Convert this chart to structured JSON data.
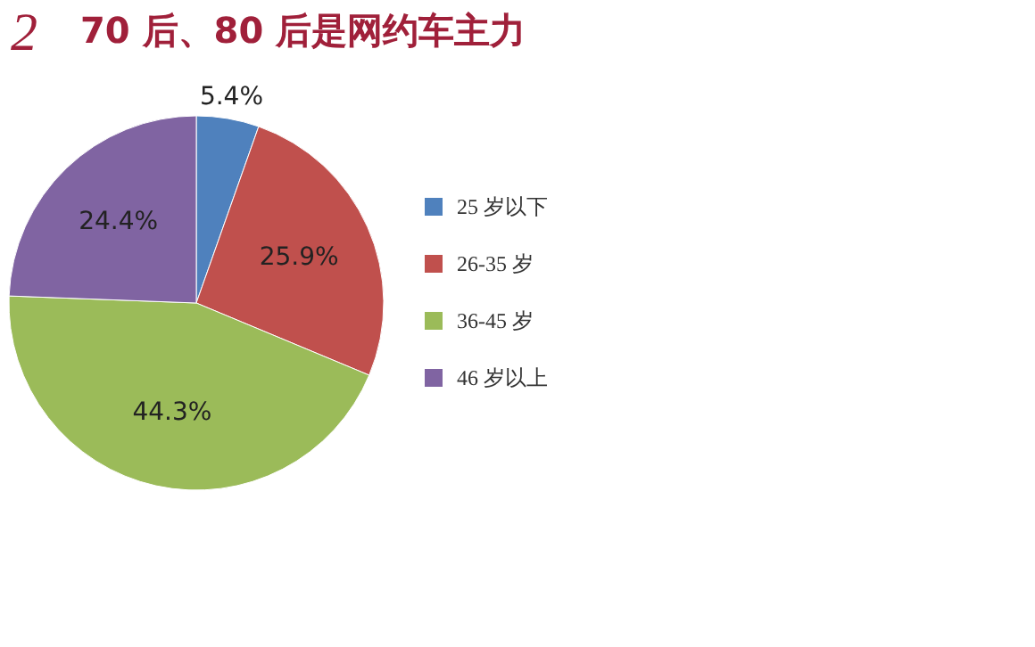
{
  "chart_data": {
    "type": "pie",
    "title": "70 后、80 后是网约车主力",
    "annotations": [
      "2"
    ],
    "categories": [
      "25 岁以下",
      "26-35 岁",
      "36-45 岁",
      "46 岁以上"
    ],
    "values": [
      5.4,
      25.9,
      44.3,
      24.4
    ],
    "colors": [
      "#4f81bd",
      "#c0504d",
      "#9bbb59",
      "#8064a2"
    ],
    "value_labels": [
      "5.4%",
      "25.9%",
      "44.3%",
      "24.4%"
    ],
    "legend": "right"
  }
}
